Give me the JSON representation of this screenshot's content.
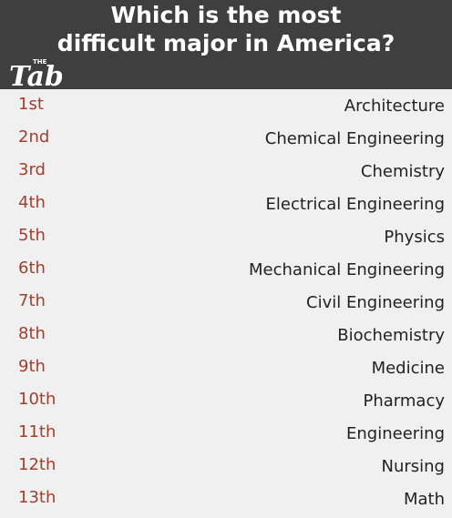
{
  "header": {
    "title_line1": "Which is the most",
    "title_line2": "difficult major in America?",
    "logo_small": "THE",
    "logo_text": "Tab"
  },
  "ranking": [
    {
      "rank": "1st",
      "major": "Architecture"
    },
    {
      "rank": "2nd",
      "major": "Chemical Engineering"
    },
    {
      "rank": "3rd",
      "major": "Chemistry"
    },
    {
      "rank": "4th",
      "major": "Electrical Engineering"
    },
    {
      "rank": "5th",
      "major": "Physics"
    },
    {
      "rank": "6th",
      "major": "Mechanical Engineering"
    },
    {
      "rank": "7th",
      "major": "Civil Engineering"
    },
    {
      "rank": "8th",
      "major": "Biochemistry"
    },
    {
      "rank": "9th",
      "major": "Medicine"
    },
    {
      "rank": "10th",
      "major": "Pharmacy"
    },
    {
      "rank": "11th",
      "major": "Engineering"
    },
    {
      "rank": "12th",
      "major": "Nursing"
    },
    {
      "rank": "13th",
      "major": "Math"
    }
  ],
  "colors": {
    "header_bg": "#3f3f3f",
    "page_bg": "#f0f0f0",
    "rank_text": "#a04030",
    "major_text": "#222222"
  }
}
